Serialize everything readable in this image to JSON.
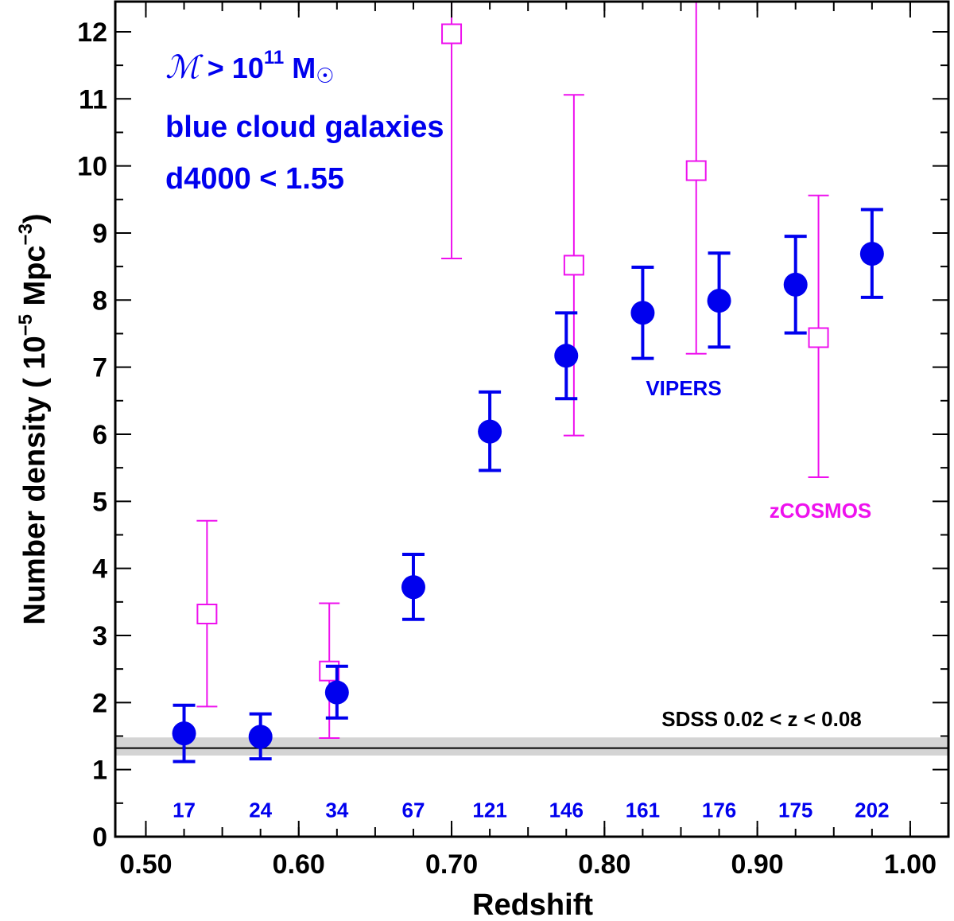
{
  "chart_data": {
    "type": "scatter",
    "xlabel": "Redshift",
    "ylabel_parts": {
      "prefix": "Number density ( 10",
      "exp1": "−5",
      "unit": " Mpc",
      "exp2": "−3",
      "suffix": ")"
    },
    "xlim": [
      0.48,
      1.025
    ],
    "ylim": [
      0,
      12.45
    ],
    "x_ticks": [
      0.5,
      0.6,
      0.7,
      0.8,
      0.9,
      1.0
    ],
    "x_tick_labels": [
      "0.50",
      "0.60",
      "0.70",
      "0.80",
      "0.90",
      "1.00"
    ],
    "y_ticks": [
      0,
      1,
      2,
      3,
      4,
      5,
      6,
      7,
      8,
      9,
      10,
      11,
      12
    ],
    "y_tick_labels": [
      "0",
      "1",
      "2",
      "3",
      "4",
      "5",
      "6",
      "7",
      "8",
      "9",
      "10",
      "11",
      "12"
    ],
    "colors": {
      "vipers": "#0000ee",
      "zcosmos": "#ee11ee",
      "sdss_band": "#d4d4d4",
      "sdss_line": "#000000"
    },
    "series": [
      {
        "name": "VIPERS",
        "marker": "filled-circle",
        "x": [
          0.525,
          0.575,
          0.625,
          0.675,
          0.725,
          0.775,
          0.825,
          0.875,
          0.925,
          0.975
        ],
        "y": [
          1.54,
          1.49,
          2.15,
          3.72,
          6.04,
          7.17,
          7.81,
          7.99,
          8.23,
          8.69
        ],
        "err_low": [
          1.12,
          1.16,
          1.77,
          3.24,
          5.46,
          6.53,
          7.13,
          7.3,
          7.51,
          8.04
        ],
        "err_high": [
          1.96,
          1.83,
          2.54,
          4.21,
          6.63,
          7.81,
          8.49,
          8.7,
          8.95,
          9.35
        ]
      },
      {
        "name": "zCOSMOS",
        "marker": "open-square",
        "x": [
          0.54,
          0.62,
          0.7,
          0.78,
          0.86,
          0.94
        ],
        "y": [
          3.32,
          2.47,
          11.97,
          8.52,
          9.93,
          7.44
        ],
        "err_low": [
          1.94,
          1.47,
          8.62,
          5.98,
          7.2,
          5.36
        ],
        "err_high": [
          4.71,
          3.48,
          12.45,
          11.06,
          12.45,
          9.56
        ]
      }
    ],
    "sdss": {
      "label": "SDSS 0.02 < z < 0.08",
      "value": 1.32,
      "band": [
        1.21,
        1.48
      ]
    },
    "bin_edges": [
      0.5,
      0.55,
      0.6,
      0.65,
      0.7,
      0.75,
      0.8,
      0.85,
      0.9,
      0.95,
      1.0
    ],
    "counts": {
      "x": [
        0.525,
        0.575,
        0.625,
        0.675,
        0.725,
        0.775,
        0.825,
        0.875,
        0.925,
        0.975
      ],
      "labels": [
        "17",
        "24",
        "34",
        "67",
        "121",
        "146",
        "161",
        "176",
        "175",
        "202"
      ],
      "y": 0.4
    },
    "annotations": {
      "mass_symbol": "ℳ",
      "mass_op": " > 10",
      "mass_exp": "11",
      "mass_unit": " M",
      "sun_symbol": "☉",
      "line2": "blue cloud galaxies",
      "line3": "d4000 < 1.55",
      "vipers_label": "VIPERS",
      "zcosmos_label": "zCOSMOS"
    }
  }
}
